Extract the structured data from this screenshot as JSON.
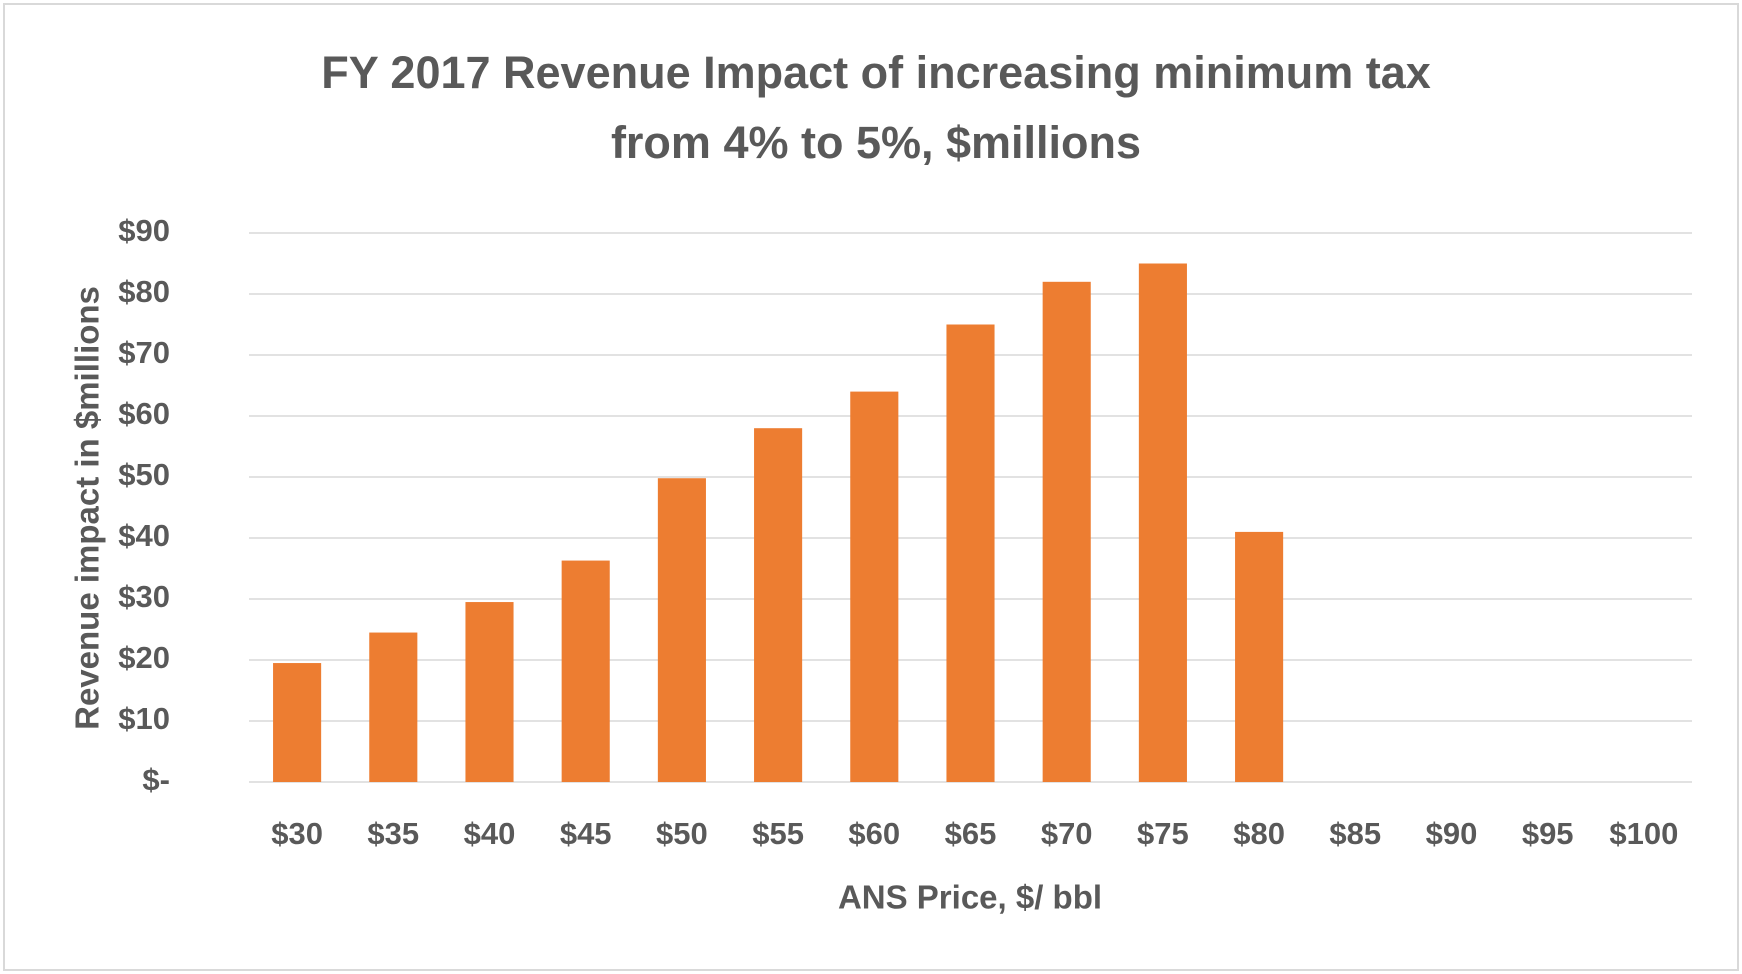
{
  "chart_data": {
    "type": "bar",
    "title": [
      "FY 2017 Revenue Impact of increasing minimum tax",
      "from 4% to 5%, $millions"
    ],
    "x_label": "ANS Price, $/ bbl",
    "y_label": "Revenue impact in $millions",
    "categories": [
      "$30",
      "$35",
      "$40",
      "$45",
      "$50",
      "$55",
      "$60",
      "$65",
      "$70",
      "$75",
      "$80",
      "$85",
      "$90",
      "$95",
      "$100"
    ],
    "values": [
      19.5,
      24.5,
      29.5,
      36.3,
      49.8,
      58,
      64,
      75,
      82,
      85,
      41,
      0,
      0,
      0,
      0
    ],
    "color": "#ed7d31",
    "ylim": [
      0,
      90
    ],
    "yticks": [
      {
        "value": 0,
        "label": "$-"
      },
      {
        "value": 10,
        "label": "$10"
      },
      {
        "value": 20,
        "label": "$20"
      },
      {
        "value": 30,
        "label": "$30"
      },
      {
        "value": 40,
        "label": "$40"
      },
      {
        "value": 50,
        "label": "$50"
      },
      {
        "value": 60,
        "label": "$60"
      },
      {
        "value": 70,
        "label": "$70"
      },
      {
        "value": 80,
        "label": "$80"
      },
      {
        "value": 90,
        "label": "$90"
      }
    ],
    "grid": true
  }
}
